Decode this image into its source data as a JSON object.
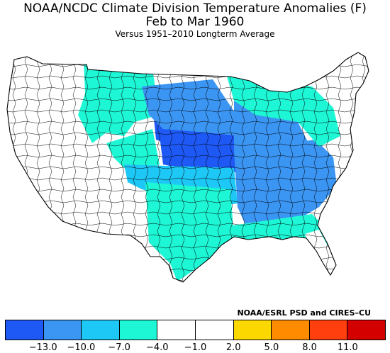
{
  "header": {
    "title_line1": "NOAA/NCDC Climate Division Temperature Anomalies (F)",
    "title_line2": "Feb to Mar 1960",
    "subtitle": "Versus 1951–2010 Longterm Average"
  },
  "credit": "NOAA/ESRL PSD and CIRES–CU",
  "legend": {
    "colors": [
      "#1e59f6",
      "#3b95f3",
      "#1ec8f6",
      "#1ef7d6",
      "#ffffff",
      "#ffffff",
      "#fbd800",
      "#ff8c00",
      "#ff3f0d",
      "#d40000"
    ],
    "ticks": [
      "−13.0",
      "−10.0",
      "−7.0",
      "−4.0",
      "−1.0",
      "2.0",
      "5.0",
      "8.0",
      "11.0"
    ]
  },
  "map": {
    "regions": [
      {
        "name": "northwest",
        "color": "#ffffff"
      },
      {
        "name": "southwest",
        "color": "#ffffff"
      },
      {
        "name": "montana-north",
        "color": "#1ef7d6"
      },
      {
        "name": "idaho-wyoming-south",
        "color": "#1ef7d6"
      },
      {
        "name": "dakotas-core",
        "color": "#1e59f6"
      },
      {
        "name": "nebraska-kansas-core",
        "color": "#1e59f6"
      },
      {
        "name": "central-plains",
        "color": "#3b95f3"
      },
      {
        "name": "colorado-oklahoma",
        "color": "#1ec8f6"
      },
      {
        "name": "new-mexico-texas",
        "color": "#1ef7d6"
      },
      {
        "name": "midwest",
        "color": "#3b95f3"
      },
      {
        "name": "southeast",
        "color": "#3b95f3"
      },
      {
        "name": "great-lakes-northeast",
        "color": "#1ef7d6"
      },
      {
        "name": "gulf-coast",
        "color": "#1ef7d6"
      },
      {
        "name": "florida-south",
        "color": "#ffffff"
      },
      {
        "name": "new-england",
        "color": "#ffffff"
      }
    ]
  }
}
